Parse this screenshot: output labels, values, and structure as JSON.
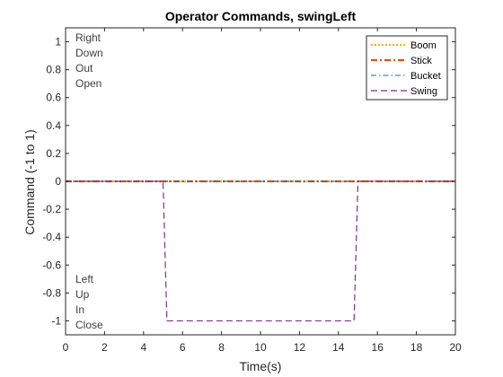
{
  "chart_data": {
    "type": "line",
    "title": "Operator Commands, swingLeft",
    "xlabel": "Time(s)",
    "ylabel": "Command (-1 to 1)",
    "xlim": [
      0,
      20
    ],
    "ylim": [
      -1.1,
      1.1
    ],
    "xticks": [
      0,
      2,
      4,
      6,
      8,
      10,
      12,
      14,
      16,
      18,
      20
    ],
    "yticks": [
      -1,
      -0.8,
      -0.6,
      -0.4,
      -0.2,
      0,
      0.2,
      0.4,
      0.6,
      0.8,
      1
    ],
    "grid": false,
    "legend_position": "top-right",
    "upper_labels": [
      "Right",
      "Down",
      "Out",
      "Open"
    ],
    "lower_labels": [
      "Left",
      "Up",
      "In",
      "Close"
    ],
    "series": [
      {
        "name": "Boom",
        "color": "#EDB120",
        "style": "dotted",
        "x": [
          0,
          20
        ],
        "y": [
          0,
          0
        ]
      },
      {
        "name": "Stick",
        "color": "#D95319",
        "style": "dashdot-thick",
        "x": [
          0,
          20
        ],
        "y": [
          0,
          0
        ]
      },
      {
        "name": "Bucket",
        "color": "#0072BD",
        "style": "dashdot",
        "x": [
          0,
          20
        ],
        "y": [
          0,
          0
        ]
      },
      {
        "name": "Swing",
        "color": "#7E2F8E",
        "style": "dashed",
        "x": [
          0,
          5,
          5.2,
          14.8,
          15,
          20
        ],
        "y": [
          0,
          0,
          -1,
          -1,
          0,
          0
        ]
      }
    ]
  }
}
